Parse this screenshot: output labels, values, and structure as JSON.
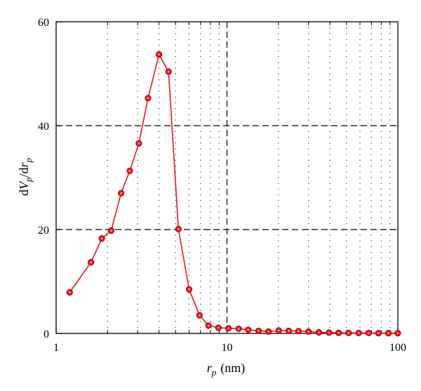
{
  "chart_data": {
    "type": "line",
    "xscale": "log",
    "xlim": [
      1,
      100
    ],
    "ylim": [
      0,
      60
    ],
    "xlabel_main": "r",
    "xlabel_sub": "p",
    "xlabel_unit": "(nm)",
    "ylabel_parts": [
      "d",
      "V",
      "p",
      "/d",
      "r",
      "p"
    ],
    "x_ticks": [
      {
        "value": 1,
        "label": "1"
      },
      {
        "value": 10,
        "label": "10"
      },
      {
        "value": 100,
        "label": "100"
      }
    ],
    "y_ticks": [
      {
        "value": 0,
        "label": "0"
      },
      {
        "value": 20,
        "label": "20"
      },
      {
        "value": 40,
        "label": "40"
      },
      {
        "value": 60,
        "label": "60"
      }
    ],
    "grid": true,
    "series": [
      {
        "color": "#e8141e",
        "x": [
          1.2,
          1.6,
          1.85,
          2.1,
          2.4,
          2.7,
          3.05,
          3.45,
          4.0,
          4.55,
          5.2,
          6.0,
          6.9,
          7.8,
          8.9,
          10.2,
          11.7,
          13.3,
          15.3,
          17.5,
          20.1,
          23.0,
          26.2,
          30.0,
          34.5,
          39.5,
          45.0,
          51.5,
          59.0,
          67.5,
          77.0,
          88.0,
          100.0
        ],
        "y": [
          7.9,
          13.7,
          18.3,
          19.8,
          27.0,
          31.3,
          36.6,
          45.3,
          53.7,
          50.4,
          20.1,
          8.5,
          3.5,
          1.5,
          1.1,
          1.0,
          0.9,
          0.7,
          0.5,
          0.35,
          0.55,
          0.5,
          0.45,
          0.35,
          0.2,
          0.15,
          0.12,
          0.1,
          0.08,
          0.08,
          0.06,
          0.05,
          0.05
        ]
      }
    ]
  }
}
